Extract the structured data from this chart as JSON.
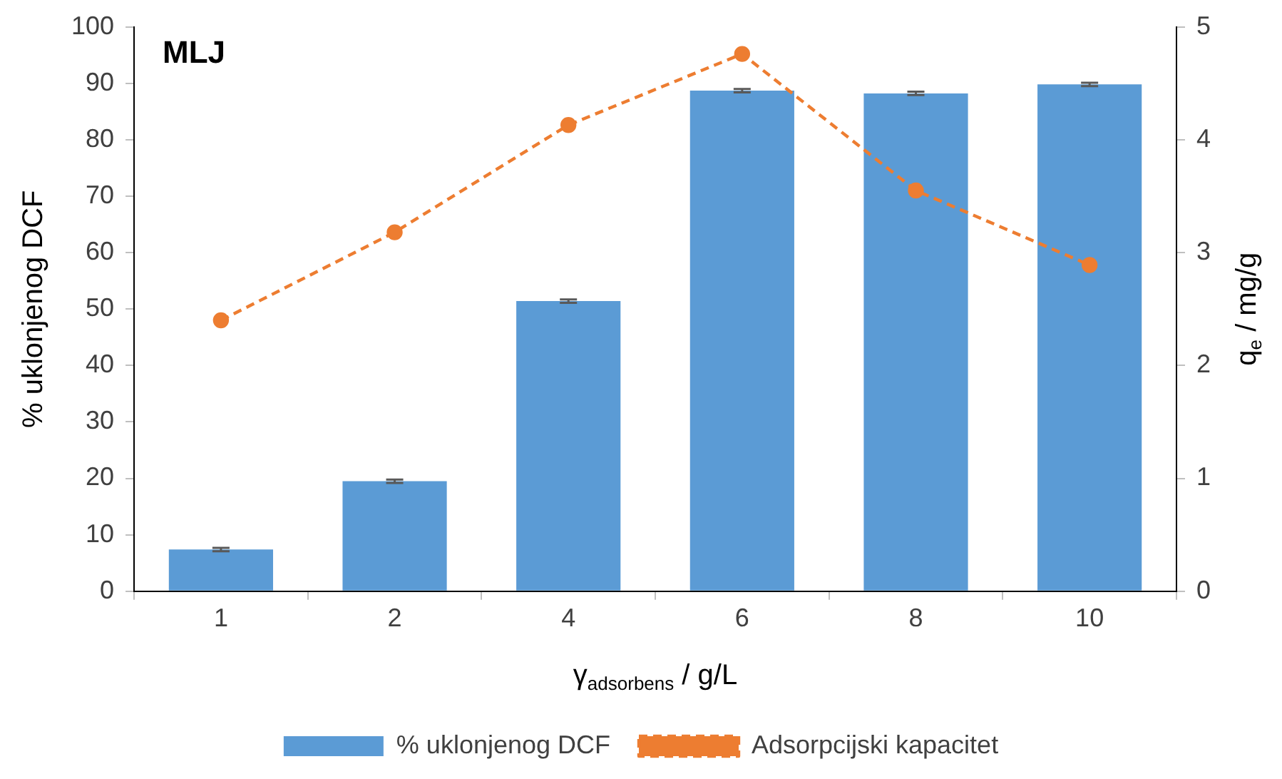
{
  "chart_data": {
    "type": "bar",
    "title": "MLJ",
    "categories": [
      "1",
      "2",
      "4",
      "6",
      "8",
      "10"
    ],
    "xlabel": "γ$_{adsorbens}$ / g/L",
    "ylabel": "% uklonjenog DCF",
    "y2label": "q$_{e}$ / mg/g",
    "series": [
      {
        "name": "% uklonjenog DCF",
        "color": "#5b9bd5",
        "values": [
          7.4,
          19.5,
          51.4,
          88.7,
          88.2,
          89.8
        ],
        "errors": [
          0.3,
          0.3,
          0.3,
          0.3,
          0.3,
          0.3
        ]
      },
      {
        "name": "Adsorpcijski kapacitet",
        "type": "line",
        "axis": "y2",
        "color": "#ed7d31",
        "values": [
          2.4,
          3.18,
          4.13,
          4.76,
          3.55,
          2.89
        ],
        "marker": "circle",
        "line_style": "dashed"
      }
    ],
    "ylim": [
      0,
      100
    ],
    "yticks": [
      0,
      10,
      20,
      30,
      40,
      50,
      60,
      70,
      80,
      90,
      100
    ],
    "y2lim": [
      0,
      5
    ],
    "y2ticks": [
      0,
      1,
      2,
      3,
      4,
      5
    ],
    "grid": false,
    "legend": "bottom"
  }
}
